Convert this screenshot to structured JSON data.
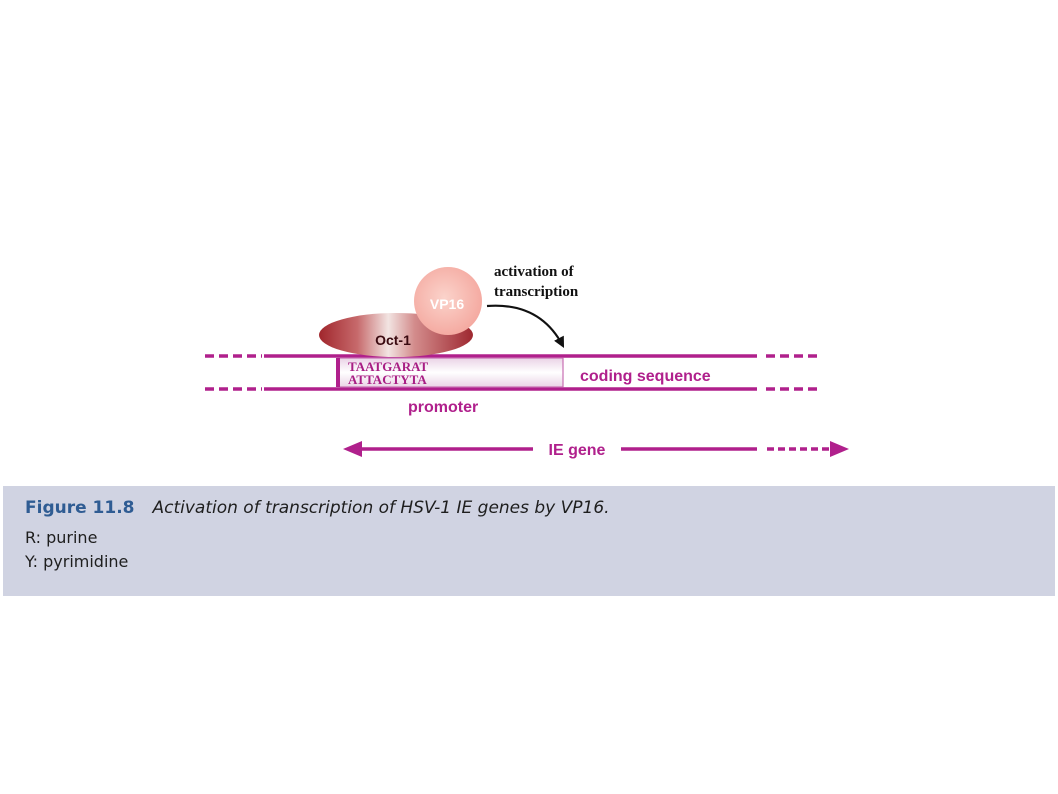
{
  "diagram": {
    "vp16_label": "VP16",
    "oct1_label": "Oct-1",
    "activation_line1": "activation of",
    "activation_line2": "transcription",
    "seq_top": "TAATGARAT",
    "seq_bottom": "ATTACTYTA",
    "coding_label": "coding sequence",
    "promoter_label": "promoter",
    "ie_gene_label": "IE gene"
  },
  "caption": {
    "figure_number": "Figure 11.8",
    "title": "Activation of transcription of HSV-1 IE genes by VP16.",
    "note_r": "R: purine",
    "note_y": "Y: pyrimidine"
  },
  "colors": {
    "dna_magenta": "#b0208c",
    "oct1_red": "#a8323a",
    "vp16_pink": "#f7b9b0",
    "caption_bg": "#d0d3e2",
    "caption_number": "#2f5c93"
  }
}
